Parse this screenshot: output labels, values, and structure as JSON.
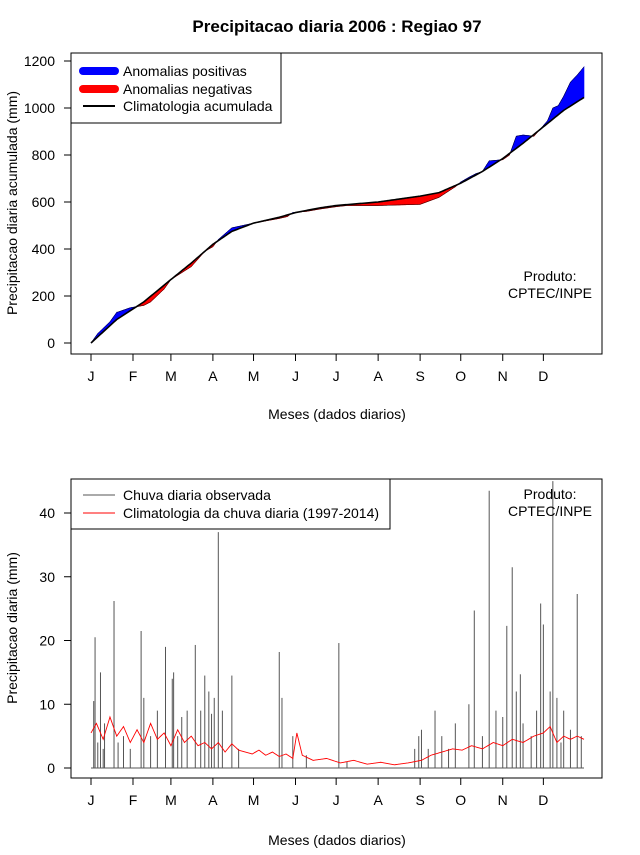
{
  "title": "Precipitacao diaria 2006 : Regiao 97",
  "chart_data": [
    {
      "type": "area",
      "ylabel": "Precipitacao diaria acumulada (mm)",
      "xlabel": "Meses (dados diarios)",
      "month_labels": [
        "J",
        "F",
        "M",
        "A",
        "M",
        "J",
        "J",
        "A",
        "S",
        "O",
        "N",
        "D"
      ],
      "month_start_days": [
        1,
        32,
        60,
        91,
        121,
        152,
        182,
        213,
        244,
        274,
        305,
        335
      ],
      "xlim": [
        1,
        365
      ],
      "ylim": [
        0,
        1200
      ],
      "yticks": [
        0,
        200,
        400,
        600,
        800,
        1000,
        1200
      ],
      "legend": [
        {
          "label": "Anomalias positivas",
          "color": "#0000ff"
        },
        {
          "label": "Anomalias negativas",
          "color": "#ff0000"
        },
        {
          "label": "Climatologia acumulada",
          "color": "#000000"
        }
      ],
      "annotation": [
        "Produto:",
        "CPTEC/INPE"
      ],
      "climatology_keypoints": [
        [
          1,
          0
        ],
        [
          20,
          100
        ],
        [
          40,
          175
        ],
        [
          60,
          270
        ],
        [
          75,
          340
        ],
        [
          91,
          420
        ],
        [
          105,
          475
        ],
        [
          121,
          510
        ],
        [
          140,
          535
        ],
        [
          152,
          555
        ],
        [
          170,
          575
        ],
        [
          182,
          585
        ],
        [
          213,
          600
        ],
        [
          244,
          625
        ],
        [
          258,
          640
        ],
        [
          274,
          680
        ],
        [
          290,
          730
        ],
        [
          305,
          785
        ],
        [
          320,
          850
        ],
        [
          335,
          920
        ],
        [
          350,
          990
        ],
        [
          365,
          1045
        ]
      ],
      "observed_keypoints": [
        [
          1,
          0
        ],
        [
          6,
          40
        ],
        [
          15,
          90
        ],
        [
          20,
          130
        ],
        [
          30,
          150
        ],
        [
          40,
          160
        ],
        [
          45,
          175
        ],
        [
          55,
          230
        ],
        [
          60,
          270
        ],
        [
          75,
          325
        ],
        [
          85,
          390
        ],
        [
          91,
          410
        ],
        [
          95,
          440
        ],
        [
          100,
          465
        ],
        [
          105,
          490
        ],
        [
          121,
          510
        ],
        [
          140,
          530
        ],
        [
          146,
          538
        ],
        [
          150,
          555
        ],
        [
          160,
          560
        ],
        [
          170,
          570
        ],
        [
          182,
          580
        ],
        [
          190,
          585
        ],
        [
          213,
          585
        ],
        [
          244,
          590
        ],
        [
          258,
          620
        ],
        [
          270,
          665
        ],
        [
          274,
          685
        ],
        [
          280,
          705
        ],
        [
          285,
          720
        ],
        [
          290,
          730
        ],
        [
          295,
          775
        ],
        [
          305,
          780
        ],
        [
          310,
          800
        ],
        [
          315,
          880
        ],
        [
          320,
          885
        ],
        [
          328,
          880
        ],
        [
          335,
          925
        ],
        [
          338,
          945
        ],
        [
          342,
          1000
        ],
        [
          346,
          1010
        ],
        [
          350,
          1050
        ],
        [
          355,
          1110
        ],
        [
          360,
          1140
        ],
        [
          365,
          1175
        ]
      ]
    },
    {
      "type": "bar",
      "ylabel": "Precipitacao diaria (mm)",
      "xlabel": "Meses (dados diarios)",
      "month_labels": [
        "J",
        "F",
        "M",
        "A",
        "M",
        "J",
        "J",
        "A",
        "S",
        "O",
        "N",
        "D"
      ],
      "month_start_days": [
        1,
        32,
        60,
        91,
        121,
        152,
        182,
        213,
        244,
        274,
        305,
        335
      ],
      "xlim": [
        1,
        365
      ],
      "ylim": [
        0,
        45
      ],
      "yticks": [
        0,
        10,
        20,
        30,
        40
      ],
      "legend": [
        {
          "label": "Chuva diaria observada",
          "color": "#555555"
        },
        {
          "label": "Climatologia da chuva diaria (1997-2014)",
          "color": "#ff0000"
        }
      ],
      "annotation": [
        "Produto:",
        "CPTEC/INPE"
      ],
      "observed_peaks": [
        [
          3,
          10.5
        ],
        [
          4,
          20.5
        ],
        [
          6,
          4
        ],
        [
          8,
          15
        ],
        [
          10,
          3
        ],
        [
          11,
          7
        ],
        [
          18,
          26.2
        ],
        [
          21,
          4
        ],
        [
          25,
          5
        ],
        [
          30,
          3
        ],
        [
          38,
          21.5
        ],
        [
          40,
          11
        ],
        [
          45,
          5
        ],
        [
          50,
          9
        ],
        [
          56,
          19
        ],
        [
          61,
          14
        ],
        [
          62,
          15
        ],
        [
          65,
          5
        ],
        [
          68,
          8
        ],
        [
          72,
          9
        ],
        [
          78,
          19.3
        ],
        [
          82,
          9
        ],
        [
          85,
          14.5
        ],
        [
          88,
          12
        ],
        [
          90,
          8.5
        ],
        [
          92,
          11
        ],
        [
          95,
          37
        ],
        [
          98,
          9
        ],
        [
          105,
          14.5
        ],
        [
          110,
          3
        ],
        [
          140,
          18.2
        ],
        [
          142,
          11
        ],
        [
          150,
          5
        ],
        [
          160,
          2
        ],
        [
          184,
          19.6
        ],
        [
          190,
          1
        ],
        [
          240,
          3
        ],
        [
          243,
          5
        ],
        [
          245,
          6
        ],
        [
          250,
          3
        ],
        [
          255,
          9
        ],
        [
          260,
          5
        ],
        [
          265,
          3
        ],
        [
          270,
          7
        ],
        [
          280,
          10
        ],
        [
          284,
          24.7
        ],
        [
          290,
          5
        ],
        [
          295,
          43.5
        ],
        [
          300,
          9
        ],
        [
          305,
          8
        ],
        [
          308,
          22.3
        ],
        [
          312,
          31.5
        ],
        [
          315,
          12
        ],
        [
          318,
          14.7
        ],
        [
          320,
          7
        ],
        [
          326,
          5
        ],
        [
          330,
          9
        ],
        [
          333,
          25.8
        ],
        [
          335,
          22.5
        ],
        [
          340,
          12
        ],
        [
          342,
          45
        ],
        [
          345,
          11
        ],
        [
          348,
          4
        ],
        [
          350,
          9
        ],
        [
          355,
          6
        ],
        [
          360,
          27.3
        ],
        [
          363,
          5
        ]
      ],
      "climatology_keypoints": [
        [
          1,
          5.5
        ],
        [
          5,
          7
        ],
        [
          10,
          4.5
        ],
        [
          15,
          8
        ],
        [
          20,
          5
        ],
        [
          25,
          6.5
        ],
        [
          30,
          4
        ],
        [
          35,
          6
        ],
        [
          40,
          4
        ],
        [
          45,
          7
        ],
        [
          50,
          4.5
        ],
        [
          55,
          5.5
        ],
        [
          60,
          3.5
        ],
        [
          65,
          6
        ],
        [
          70,
          4
        ],
        [
          75,
          5
        ],
        [
          80,
          3.5
        ],
        [
          85,
          4
        ],
        [
          90,
          3
        ],
        [
          95,
          4
        ],
        [
          100,
          2.5
        ],
        [
          105,
          3.8
        ],
        [
          110,
          2.8
        ],
        [
          115,
          2.5
        ],
        [
          120,
          2.2
        ],
        [
          125,
          2.8
        ],
        [
          130,
          2
        ],
        [
          135,
          2.5
        ],
        [
          140,
          1.8
        ],
        [
          145,
          2.2
        ],
        [
          150,
          1.5
        ],
        [
          153,
          5.5
        ],
        [
          157,
          2
        ],
        [
          165,
          1.2
        ],
        [
          175,
          1.5
        ],
        [
          185,
          0.8
        ],
        [
          195,
          1.2
        ],
        [
          205,
          0.6
        ],
        [
          215,
          0.9
        ],
        [
          225,
          0.5
        ],
        [
          235,
          0.8
        ],
        [
          245,
          1.2
        ],
        [
          252,
          2
        ],
        [
          260,
          2.5
        ],
        [
          268,
          3
        ],
        [
          275,
          2.8
        ],
        [
          282,
          3.5
        ],
        [
          290,
          3
        ],
        [
          298,
          4
        ],
        [
          305,
          3.5
        ],
        [
          312,
          4.5
        ],
        [
          320,
          4
        ],
        [
          328,
          5
        ],
        [
          335,
          5.5
        ],
        [
          340,
          6.5
        ],
        [
          345,
          4
        ],
        [
          350,
          5
        ],
        [
          355,
          4.5
        ],
        [
          360,
          5
        ],
        [
          365,
          4.5
        ]
      ]
    }
  ]
}
